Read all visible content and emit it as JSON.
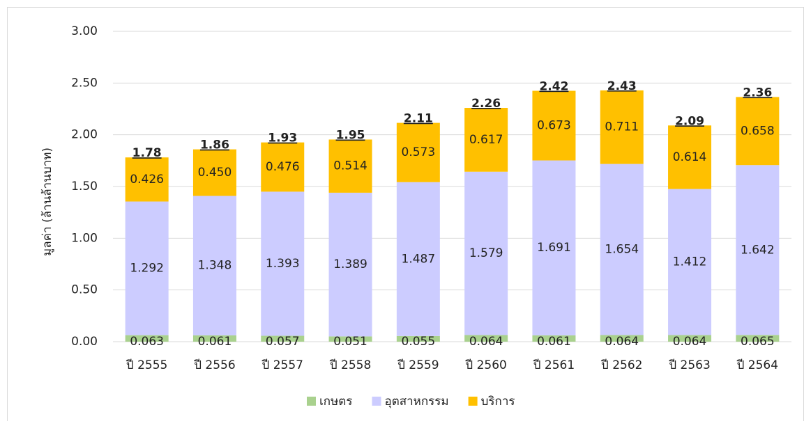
{
  "chart_data": {
    "type": "stacked_bar",
    "y_label": "มูลค่า (ล้านล้านบาท)",
    "categories": [
      "ปี 2555",
      "ปี 2556",
      "ปี 2557",
      "ปี 2558",
      "ปี 2559",
      "ปี 2560",
      "ปี 2561",
      "ปี 2562",
      "ปี 2563",
      "ปี 2564"
    ],
    "series": [
      {
        "name": "เกษตร",
        "color": "#a9d18e",
        "values": [
          0.063,
          0.061,
          0.057,
          0.051,
          0.055,
          0.064,
          0.061,
          0.064,
          0.064,
          0.065
        ]
      },
      {
        "name": "อุตสาหกรรม",
        "color": "#ccccff",
        "values": [
          1.292,
          1.348,
          1.393,
          1.389,
          1.487,
          1.579,
          1.691,
          1.654,
          1.412,
          1.642
        ]
      },
      {
        "name": "บริการ",
        "color": "#ffc000",
        "values": [
          0.426,
          0.45,
          0.476,
          0.514,
          0.573,
          0.617,
          0.673,
          0.711,
          0.614,
          0.658
        ],
        "value_labels": [
          "0.426",
          "0.450",
          "0.476",
          "0.514",
          "0.573",
          "0.617",
          "0.673",
          "0.711",
          "0.614",
          "0.658"
        ]
      }
    ],
    "total_labels": [
      "1.78",
      "1.86",
      "1.93",
      "1.95",
      "2.11",
      "2.26",
      "2.42",
      "2.43",
      "2.09",
      "2.36"
    ],
    "ylim": [
      0,
      3
    ],
    "yticks": [
      {
        "value": 0,
        "label": "0.00"
      },
      {
        "value": 0.5,
        "label": "0.50"
      },
      {
        "value": 1,
        "label": "1.00"
      },
      {
        "value": 1.5,
        "label": "1.50"
      },
      {
        "value": 2,
        "label": "2.00"
      },
      {
        "value": 2.5,
        "label": "2.50"
      },
      {
        "value": 3,
        "label": "3.00"
      }
    ],
    "grid": true,
    "legend": "bottom"
  }
}
